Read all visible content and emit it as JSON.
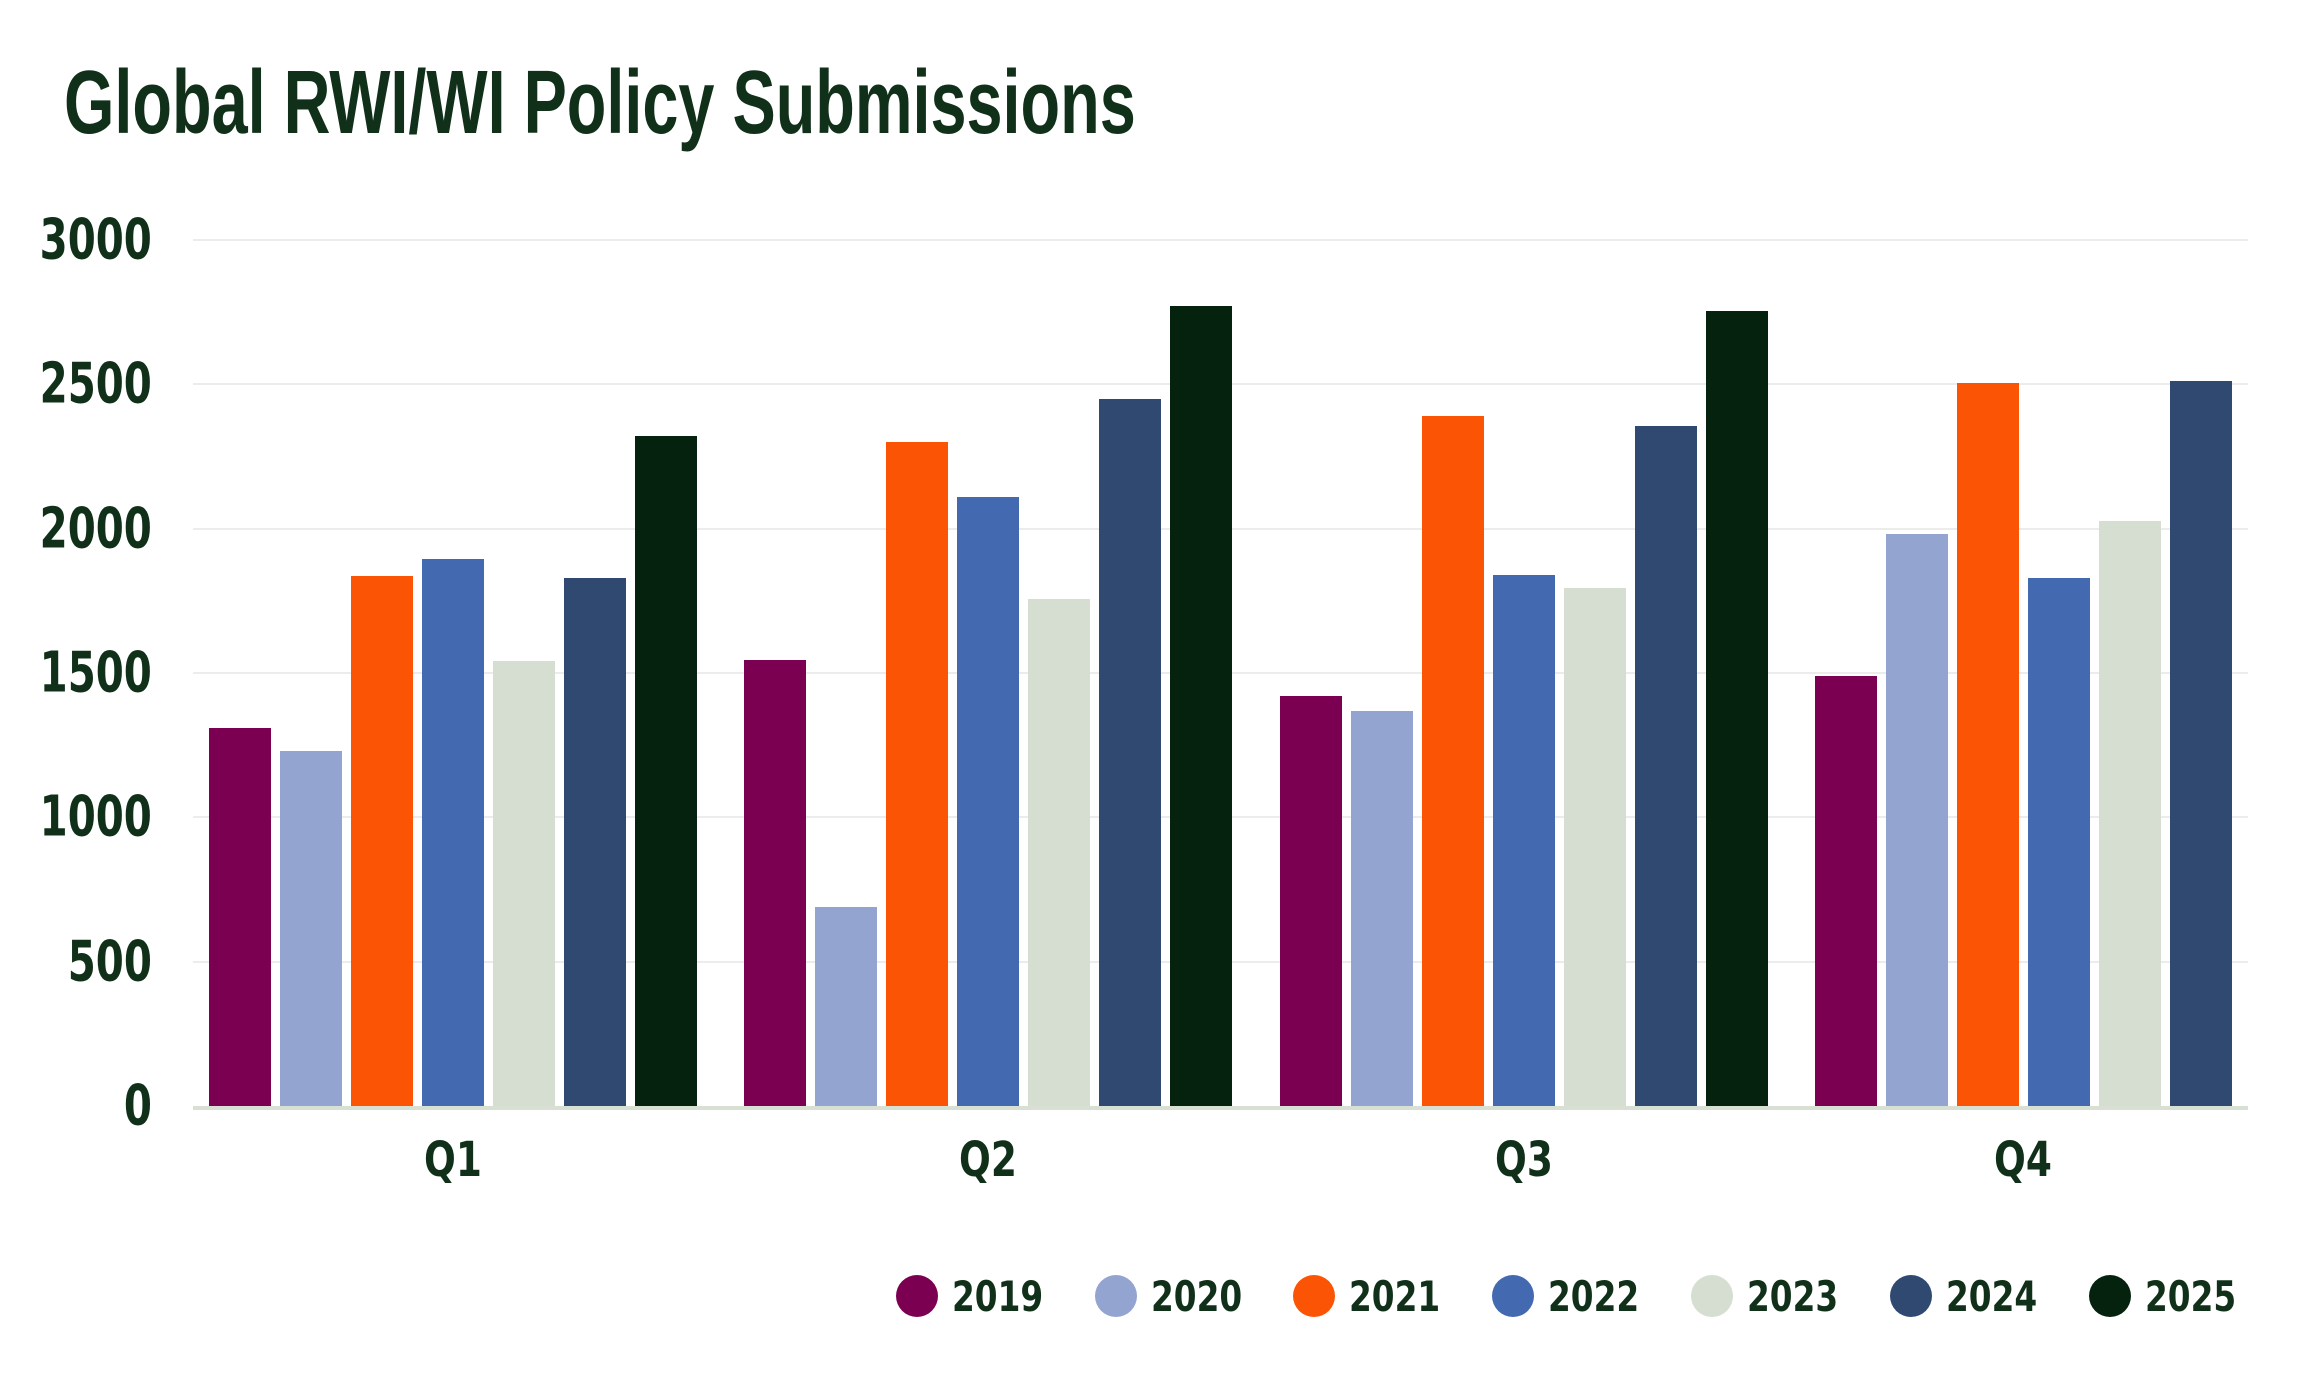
{
  "title": "Global RWI/WI Policy Submissions",
  "colors": {
    "background": "#FFFFFF",
    "text_dark_green": "#11301A",
    "grid_line": "#ECECEC",
    "axis_line": "#D8DFD3"
  },
  "chart_data": {
    "type": "bar",
    "title": "Global RWI/WI Policy Submissions",
    "categories": [
      "Q1",
      "Q2",
      "Q3",
      "Q4"
    ],
    "series": [
      {
        "name": "2019",
        "color": "#7C0052",
        "values": [
          1310,
          1545,
          1420,
          1490
        ]
      },
      {
        "name": "2020",
        "color": "#93A4D0",
        "values": [
          1230,
          690,
          1370,
          1980
        ]
      },
      {
        "name": "2021",
        "color": "#FC5405",
        "values": [
          1835,
          2300,
          2390,
          2505
        ]
      },
      {
        "name": "2022",
        "color": "#4369B0",
        "values": [
          1895,
          2110,
          1840,
          1830
        ]
      },
      {
        "name": "2023",
        "color": "#D5DED1",
        "values": [
          1540,
          1755,
          1795,
          2025
        ]
      },
      {
        "name": "2024",
        "color": "#2F4971",
        "values": [
          1830,
          2450,
          2355,
          2510
        ]
      },
      {
        "name": "2025",
        "color": "#05220F",
        "values": [
          2320,
          2770,
          2755,
          null
        ]
      }
    ],
    "xlabel": "",
    "ylabel": "",
    "ylim": [
      0,
      3000
    ],
    "yticks": [
      0,
      500,
      1000,
      1500,
      2000,
      2500,
      3000
    ],
    "grid": true,
    "legend_position": "bottom-right",
    "legend_labels": [
      "2019",
      "2020",
      "2021",
      "2022",
      "2023",
      "2024",
      "2025"
    ]
  }
}
